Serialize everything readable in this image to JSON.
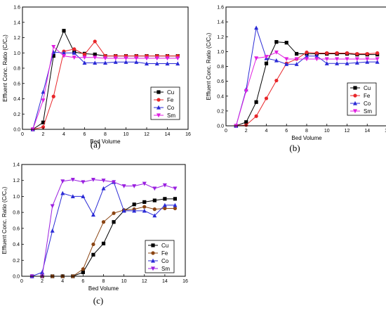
{
  "chart_data": [
    {
      "type": "line",
      "panel_label": "(a)",
      "xlabel": "Bed Volume",
      "ylabel": "Effluent Conc. Ratio (C/C₀)",
      "xlim": [
        0,
        16
      ],
      "ylim": [
        0,
        1.6
      ],
      "xticks": [
        0,
        2,
        4,
        6,
        8,
        10,
        12,
        14,
        16
      ],
      "yticks": [
        0.0,
        0.2,
        0.4,
        0.6,
        0.8,
        1.0,
        1.2,
        1.4,
        1.6
      ],
      "legend_position": "right",
      "series": [
        {
          "name": "Cu",
          "color": "#000000",
          "marker": "square",
          "x": [
            1,
            2,
            3,
            4,
            5,
            6,
            7,
            8,
            9,
            10,
            11,
            12,
            13,
            14,
            15
          ],
          "y": [
            0,
            0.09,
            0.96,
            1.29,
            1.01,
            0.99,
            0.98,
            0.96,
            0.96,
            0.96,
            0.96,
            0.96,
            0.96,
            0.96,
            0.96
          ]
        },
        {
          "name": "Fe",
          "color": "#e8262a",
          "marker": "circle",
          "x": [
            1,
            2,
            3,
            4,
            5,
            6,
            7,
            8,
            9,
            10,
            11,
            12,
            13,
            14,
            15
          ],
          "y": [
            0,
            0.03,
            0.43,
            1.02,
            1.05,
            0.98,
            1.15,
            0.96,
            0.96,
            0.96,
            0.96,
            0.96,
            0.96,
            0.96,
            0.96
          ]
        },
        {
          "name": "Co",
          "color": "#2b2bd6",
          "marker": "triangle-up",
          "x": [
            1,
            2,
            3,
            4,
            5,
            6,
            7,
            8,
            9,
            10,
            11,
            12,
            13,
            14,
            15
          ],
          "y": [
            0,
            0.49,
            1.01,
            1.0,
            1.0,
            0.87,
            0.87,
            0.87,
            0.88,
            0.88,
            0.88,
            0.86,
            0.86,
            0.86,
            0.86
          ]
        },
        {
          "name": "Sm",
          "color": "#e01fe0",
          "marker": "triangle-down",
          "x": [
            1,
            2,
            3,
            4,
            5,
            6,
            7,
            8,
            9,
            10,
            11,
            12,
            13,
            14,
            15
          ],
          "y": [
            0,
            0.38,
            1.08,
            0.96,
            0.94,
            0.94,
            0.94,
            0.93,
            0.93,
            0.93,
            0.93,
            0.93,
            0.93,
            0.93,
            0.93
          ]
        }
      ]
    },
    {
      "type": "line",
      "panel_label": "(b)",
      "xlabel": "Bed Volume",
      "ylabel": "Effluent Conc. Ratio (C/C₀)",
      "xlim": [
        0,
        16
      ],
      "ylim": [
        0,
        1.6
      ],
      "xticks": [
        0,
        2,
        4,
        6,
        8,
        10,
        12,
        14,
        16
      ],
      "yticks": [
        0.0,
        0.2,
        0.4,
        0.6,
        0.8,
        1.0,
        1.2,
        1.4,
        1.6
      ],
      "legend_position": "right",
      "series": [
        {
          "name": "Cu",
          "color": "#000000",
          "marker": "square",
          "x": [
            1,
            2,
            3,
            4,
            5,
            6,
            7,
            8,
            9,
            10,
            11,
            12,
            13,
            14,
            15
          ],
          "y": [
            0,
            0.05,
            0.32,
            0.84,
            1.13,
            1.12,
            0.97,
            0.97,
            0.97,
            0.97,
            0.97,
            0.97,
            0.96,
            0.96,
            0.96
          ]
        },
        {
          "name": "Fe",
          "color": "#e8262a",
          "marker": "circle",
          "x": [
            1,
            2,
            3,
            4,
            5,
            6,
            7,
            8,
            9,
            10,
            11,
            12,
            13,
            14,
            15
          ],
          "y": [
            0,
            0.01,
            0.13,
            0.37,
            0.61,
            0.84,
            0.9,
            0.99,
            0.98,
            0.98,
            0.98,
            0.98,
            0.97,
            0.97,
            0.98
          ]
        },
        {
          "name": "Co",
          "color": "#2b2bd6",
          "marker": "triangle-up",
          "x": [
            1,
            2,
            3,
            4,
            5,
            6,
            7,
            8,
            9,
            10,
            11,
            12,
            13,
            14,
            15
          ],
          "y": [
            0,
            0.49,
            1.32,
            0.91,
            0.88,
            0.83,
            0.83,
            0.94,
            0.94,
            0.84,
            0.84,
            0.84,
            0.85,
            0.86,
            0.86
          ]
        },
        {
          "name": "Sm",
          "color": "#e01fe0",
          "marker": "triangle-down",
          "x": [
            1,
            2,
            3,
            4,
            5,
            6,
            7,
            8,
            9,
            10,
            11,
            12,
            13,
            14,
            15
          ],
          "y": [
            0,
            0.47,
            0.91,
            0.93,
            0.99,
            0.9,
            0.9,
            0.9,
            0.9,
            0.9,
            0.9,
            0.9,
            0.9,
            0.9,
            0.9
          ]
        }
      ]
    },
    {
      "type": "line",
      "panel_label": "(c)",
      "xlabel": "Bed Volume",
      "ylabel": "Effluent Conc. Ratio (C/C₀)",
      "xlim": [
        0,
        16
      ],
      "ylim": [
        0,
        1.4
      ],
      "xticks": [
        0,
        2,
        4,
        6,
        8,
        10,
        12,
        14,
        16
      ],
      "yticks": [
        0.0,
        0.2,
        0.4,
        0.6,
        0.8,
        1.0,
        1.2,
        1.4
      ],
      "legend_position": "bottom-right",
      "series": [
        {
          "name": "Cu",
          "color": "#000000",
          "marker": "square",
          "x": [
            1,
            2,
            3,
            4,
            5,
            6,
            7,
            8,
            9,
            10,
            11,
            12,
            13,
            14,
            15
          ],
          "y": [
            0,
            0,
            0,
            0,
            0,
            0.05,
            0.27,
            0.41,
            0.68,
            0.82,
            0.9,
            0.93,
            0.95,
            0.97,
            0.97
          ]
        },
        {
          "name": "Fe",
          "color": "#8b4513",
          "marker": "circle",
          "x": [
            1,
            2,
            3,
            4,
            5,
            6,
            7,
            8,
            9,
            10,
            11,
            12,
            13,
            14,
            15
          ],
          "y": [
            0,
            0,
            0,
            0,
            0,
            0.09,
            0.4,
            0.68,
            0.79,
            0.83,
            0.84,
            0.87,
            0.84,
            0.85,
            0.85
          ]
        },
        {
          "name": "Co",
          "color": "#2b2bd6",
          "marker": "triangle-up",
          "x": [
            1,
            2,
            3,
            4,
            5,
            6,
            7,
            8,
            9,
            10,
            11,
            12,
            13,
            14,
            15
          ],
          "y": [
            0,
            0.05,
            0.57,
            1.04,
            1.0,
            1.0,
            0.77,
            1.1,
            1.18,
            0.82,
            0.82,
            0.82,
            0.76,
            0.89,
            0.89
          ]
        },
        {
          "name": "Sm",
          "color": "#9a1fe0",
          "marker": "triangle-down",
          "x": [
            1,
            2,
            3,
            4,
            5,
            6,
            7,
            8,
            9,
            10,
            11,
            12,
            13,
            14,
            15
          ],
          "y": [
            0,
            0,
            0.88,
            1.19,
            1.21,
            1.18,
            1.21,
            1.2,
            1.18,
            1.13,
            1.13,
            1.16,
            1.1,
            1.14,
            1.1
          ]
        }
      ]
    }
  ]
}
